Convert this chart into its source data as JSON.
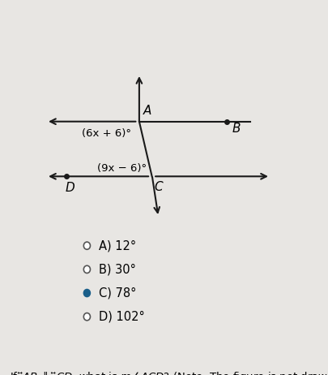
{
  "background_color": "#e8e6e3",
  "line_color": "#1a1a1a",
  "label_A": "A",
  "label_B": "B",
  "label_C": "C",
  "label_D": "D",
  "angle_label_upper": "(6x + 6)°",
  "angle_label_lower": "(9x − 6)°",
  "choices": [
    "A) 12°",
    "B) 30°",
    "C) 78°",
    "D) 102°"
  ],
  "selected_index": 2,
  "circle_color": "#1a5f8a",
  "title_fontsize": 10.5,
  "fig_width": 4.06,
  "fig_height": 4.62,
  "dpi": 100
}
